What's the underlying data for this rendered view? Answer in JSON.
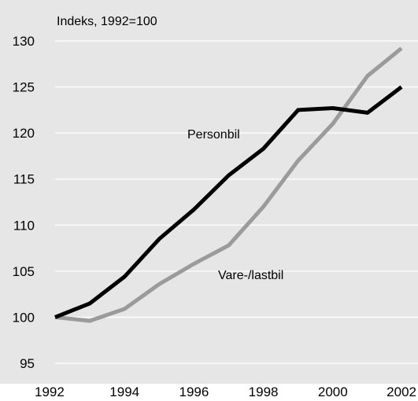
{
  "chart_data": {
    "type": "line",
    "ylabel": "Indeks, 1992=100",
    "x": [
      1992,
      1993,
      1994,
      1995,
      1996,
      1997,
      1998,
      1999,
      2000,
      2001,
      2002
    ],
    "xticks": [
      "1992",
      "1994",
      "1996",
      "1998",
      "2000",
      "2002"
    ],
    "yticks": [
      "95",
      "100",
      "105",
      "110",
      "115",
      "120",
      "125",
      "130"
    ],
    "xlim": [
      1992,
      2002
    ],
    "ylim": [
      95,
      130
    ],
    "grid": true,
    "series": [
      {
        "name": "Personbil",
        "color": "#000000",
        "values": [
          100.0,
          101.5,
          104.4,
          108.5,
          111.7,
          115.4,
          118.3,
          122.5,
          122.7,
          122.2,
          125.0
        ]
      },
      {
        "name": "Vare-/lastbil",
        "color": "#9b9b9b",
        "values": [
          100.0,
          99.6,
          100.9,
          103.6,
          105.8,
          107.8,
          112.0,
          117.0,
          121.0,
          126.2,
          129.2
        ]
      }
    ]
  },
  "colors": {
    "plot_background": "#e6e6e6",
    "gridline": "#ffffff"
  }
}
